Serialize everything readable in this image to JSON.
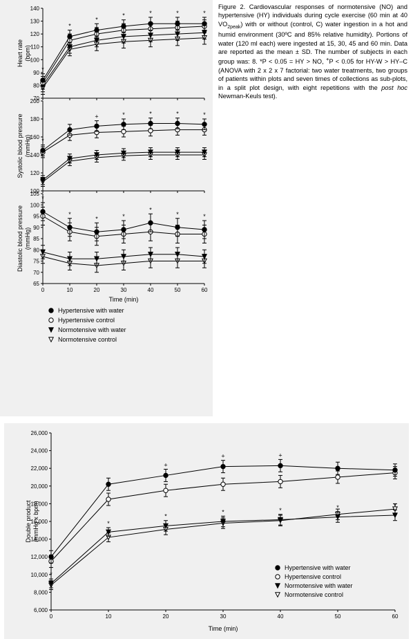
{
  "caption": {
    "prefix": "Figure 2. Cardiovascular responses of normotensive (NO) and hypertensive (HY) individuals during cycle exercise (60 min at 40 VO",
    "sub": "2peak",
    "after_sub": ") with or without (control, C) water ingestion in a hot and humid environment (30ºC and 85% relative humidity). Portions of water (120 ml each) were ingested at 15, 30, 45 and 60 min. Data are reported as the mean ± SD. The number of subjects in each group was: 8. *P < 0.05 = HY > NO, ",
    "plus": "+",
    "after_plus": "P < 0.05 for HY-W > HY–C (ANOVA with 2 x 2 x 7 factorial: two water treatments, two groups of patients within plots and seven times of collections as sub-plots, in a split plot design, with eight repetitions with the ",
    "posthoc": "post hoc",
    "after_posthoc": " Newman-Keuls test)."
  },
  "xlabel": "Time (min)",
  "xticks": [
    0,
    10,
    20,
    30,
    40,
    50,
    60
  ],
  "legend": {
    "items": [
      {
        "key": "hy_w",
        "label": "Hypertensive with water",
        "marker": "circle-filled"
      },
      {
        "key": "hy_c",
        "label": "Hypertensive control",
        "marker": "circle-open"
      },
      {
        "key": "no_w",
        "label": "Normotensive with water",
        "marker": "triangle-filled"
      },
      {
        "key": "no_c",
        "label": "Normotensive control",
        "marker": "triangle-open"
      }
    ]
  },
  "colors": {
    "marker_fill": "#000000",
    "marker_open_fill": "#ffffff",
    "line": "#000000",
    "bg_panel": "#f0f0f0",
    "grid": "#e0e0e0",
    "text": "#000000"
  },
  "panels": {
    "hr": {
      "ylabel": "Heart rate (bpm)",
      "ylim": [
        70,
        140
      ],
      "ytick_step": 10,
      "series": {
        "hy_w": {
          "y": [
            84,
            118,
            123,
            126,
            128,
            128,
            128
          ],
          "err": [
            5,
            5,
            5,
            5,
            5,
            5,
            5
          ],
          "annot": [
            "*",
            "*",
            "*",
            "*",
            "*",
            "*",
            "*"
          ]
        },
        "hy_c": {
          "y": [
            82,
            115,
            120,
            123,
            124,
            125,
            126
          ],
          "err": [
            5,
            5,
            5,
            5,
            5,
            5,
            5
          ],
          "annot": [
            "",
            "",
            "",
            "",
            "",
            "",
            ""
          ]
        },
        "no_w": {
          "y": [
            80,
            110,
            115,
            118,
            119,
            120,
            121
          ],
          "err": [
            5,
            5,
            5,
            5,
            5,
            5,
            5
          ],
          "annot": [
            "",
            "",
            "",
            "",
            "",
            "",
            ""
          ]
        },
        "no_c": {
          "y": [
            78,
            108,
            112,
            114,
            115,
            116,
            117
          ],
          "err": [
            5,
            5,
            5,
            5,
            5,
            5,
            5
          ],
          "annot": [
            "",
            "",
            "",
            "",
            "",
            "",
            ""
          ]
        }
      }
    },
    "sbp": {
      "ylabel": "Systolic blood pressure (mmHg)",
      "ylim": [
        100,
        200
      ],
      "ytick_step": 20,
      "series": {
        "hy_w": {
          "y": [
            145,
            168,
            172,
            174,
            175,
            175,
            174
          ],
          "err": [
            6,
            6,
            6,
            6,
            6,
            6,
            6
          ],
          "annot": [
            "*",
            "",
            "+",
            "*",
            "*",
            "*",
            "*"
          ]
        },
        "hy_c": {
          "y": [
            143,
            162,
            165,
            166,
            167,
            168,
            168
          ],
          "err": [
            6,
            6,
            6,
            6,
            6,
            6,
            6
          ],
          "annot": [
            "",
            "",
            "",
            "",
            "",
            "",
            ""
          ]
        },
        "no_w": {
          "y": [
            112,
            136,
            140,
            142,
            143,
            143,
            143
          ],
          "err": [
            5,
            5,
            5,
            5,
            5,
            5,
            5
          ],
          "annot": [
            "",
            "",
            "",
            "",
            "",
            "",
            ""
          ]
        },
        "no_c": {
          "y": [
            110,
            133,
            137,
            139,
            140,
            140,
            140
          ],
          "err": [
            5,
            5,
            5,
            5,
            5,
            5,
            5
          ],
          "annot": [
            "",
            "",
            "",
            "",
            "",
            "",
            ""
          ]
        }
      }
    },
    "dbp": {
      "ylabel": "Diastolic blood pressure (mmHg)",
      "ylim": [
        65,
        105
      ],
      "ytick_step": 5,
      "series": {
        "hy_w": {
          "y": [
            97,
            90,
            88,
            89,
            92,
            90,
            89
          ],
          "err": [
            4,
            4,
            4,
            4,
            4,
            4,
            4
          ],
          "annot": [
            "*",
            "*",
            "*",
            "*",
            "*",
            "*",
            "*"
          ]
        },
        "hy_c": {
          "y": [
            95,
            88,
            86,
            87,
            88,
            87,
            87
          ],
          "err": [
            4,
            4,
            4,
            4,
            4,
            4,
            4
          ],
          "annot": [
            "",
            "",
            "",
            "",
            "",
            "",
            ""
          ]
        },
        "no_w": {
          "y": [
            79,
            76,
            76,
            77,
            78,
            78,
            77
          ],
          "err": [
            3,
            3,
            3,
            3,
            3,
            3,
            3
          ],
          "annot": [
            "",
            "",
            "",
            "",
            "",
            "",
            ""
          ]
        },
        "no_c": {
          "y": [
            77,
            74,
            73,
            74,
            75,
            75,
            75
          ],
          "err": [
            3,
            3,
            3,
            3,
            3,
            3,
            3
          ],
          "annot": [
            "",
            "",
            "",
            "",
            "",
            "",
            ""
          ]
        }
      }
    },
    "dp": {
      "ylabel": "Double product (mmHg x bpm)",
      "ylim": [
        6000,
        26000
      ],
      "ytick_step": 2000,
      "series": {
        "hy_w": {
          "y": [
            12000,
            20200,
            21200,
            22200,
            22300,
            22000,
            21800
          ],
          "err": [
            700,
            700,
            700,
            700,
            700,
            700,
            700
          ],
          "annot": [
            "",
            "",
            "+",
            "+",
            "+",
            "",
            ""
          ]
        },
        "hy_c": {
          "y": [
            11500,
            18500,
            19500,
            20200,
            20500,
            21000,
            21500
          ],
          "err": [
            700,
            700,
            700,
            700,
            700,
            700,
            700
          ],
          "annot": [
            "",
            "",
            "",
            "",
            "",
            "",
            ""
          ]
        },
        "no_w": {
          "y": [
            9000,
            14800,
            15500,
            16000,
            16200,
            16500,
            16700
          ],
          "err": [
            500,
            500,
            600,
            600,
            600,
            600,
            600
          ],
          "annot": [
            "*",
            "*",
            "*",
            "*",
            "*",
            "*",
            "*"
          ]
        },
        "no_c": {
          "y": [
            8800,
            14200,
            15100,
            15800,
            16100,
            16800,
            17400
          ],
          "err": [
            500,
            500,
            600,
            600,
            600,
            600,
            600
          ],
          "annot": [
            "",
            "",
            "",
            "",
            "",
            "",
            ""
          ]
        }
      }
    }
  },
  "style": {
    "line_width": 1,
    "marker_radius": 3.2,
    "err_cap": 3,
    "annot_fontsize": 9,
    "tick_fontsize": 8,
    "label_fontsize": 9
  }
}
